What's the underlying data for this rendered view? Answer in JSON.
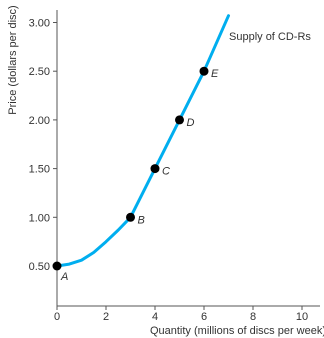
{
  "chart_data": {
    "type": "line",
    "xlabel": "Quantity (millions of discs per week)",
    "ylabel": "Price (dollars per disc)",
    "xlim": [
      0,
      11
    ],
    "ylim": [
      0.3,
      3.2
    ],
    "x_ticks": [
      0,
      2,
      4,
      6,
      8,
      10
    ],
    "y_ticks": [
      0.5,
      1.0,
      1.5,
      2.0,
      2.5,
      3.0
    ],
    "x_tick_labels": [
      "0",
      "2",
      "4",
      "6",
      "8",
      "10"
    ],
    "y_tick_labels": [
      "0.50",
      "1.00",
      "1.50",
      "2.00",
      "2.50",
      "3.00"
    ],
    "grid": false,
    "series": [
      {
        "name": "Supply of CD-Rs",
        "color": "#00aeef",
        "x": [
          0,
          0.5,
          1.0,
          1.5,
          2.0,
          2.5,
          3.0,
          4.0,
          5.0,
          6.0,
          7.0
        ],
        "y": [
          0.5,
          0.52,
          0.56,
          0.64,
          0.75,
          0.87,
          1.0,
          1.5,
          2.0,
          2.5,
          3.07
        ]
      }
    ],
    "points": [
      {
        "label": "A",
        "x": 0,
        "y": 0.5
      },
      {
        "label": "B",
        "x": 3,
        "y": 1.0
      },
      {
        "label": "C",
        "x": 4,
        "y": 1.5
      },
      {
        "label": "D",
        "x": 5,
        "y": 2.0
      },
      {
        "label": "E",
        "x": 6,
        "y": 2.5
      }
    ]
  }
}
